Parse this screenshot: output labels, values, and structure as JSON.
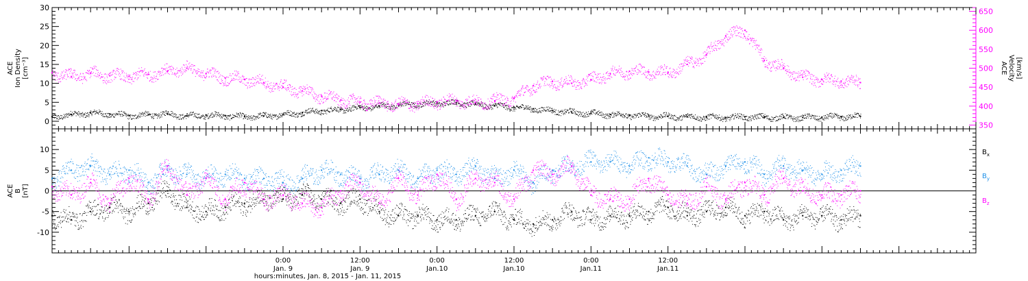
{
  "chart_data": [
    {
      "type": "scatter",
      "panel": "top",
      "ylabel_lines": [
        "ACE",
        "Ion Density",
        "[cm⁻³]"
      ],
      "ylim": [
        -2,
        30
      ],
      "yticks": [
        0,
        5,
        10,
        15,
        20,
        25,
        30
      ],
      "right_ylabel_lines": [
        "ACE",
        "Velocity",
        "[km/s]"
      ],
      "right_ylim": [
        340,
        660
      ],
      "right_yticks": [
        350,
        400,
        450,
        500,
        550,
        600,
        650
      ],
      "series": [
        {
          "axis": "left",
          "color": "#000000",
          "x_hours": [
            -36,
            -33,
            -30,
            -27,
            -24,
            -21,
            -18,
            -15,
            -12,
            -9,
            -6,
            -3,
            0,
            3,
            6,
            9,
            12,
            15,
            18,
            21,
            24,
            27,
            30,
            33,
            36,
            39,
            42,
            45,
            48,
            51,
            54,
            57,
            60,
            63,
            66,
            69,
            72,
            75,
            78,
            81,
            84,
            87,
            90
          ],
          "values": [
            1.2,
            1.8,
            2.2,
            1.9,
            1.5,
            1.7,
            2.0,
            1.4,
            1.6,
            1.5,
            1.2,
            1.4,
            1.8,
            2.3,
            2.8,
            3.1,
            3.6,
            4.0,
            4.3,
            4.6,
            4.8,
            4.9,
            4.5,
            4.1,
            3.7,
            3.3,
            2.8,
            2.4,
            2.1,
            1.8,
            1.6,
            1.4,
            1.3,
            1.2,
            1.1,
            1.0,
            1.2,
            1.1,
            1.0,
            1.0,
            1.1,
            1.2,
            1.3
          ]
        },
        {
          "axis": "right",
          "color": "#ff00ff",
          "x_hours": [
            -36,
            -33,
            -30,
            -27,
            -24,
            -21,
            -18,
            -15,
            -12,
            -9,
            -6,
            -3,
            0,
            3,
            6,
            9,
            12,
            15,
            18,
            21,
            24,
            27,
            30,
            33,
            36,
            39,
            42,
            45,
            48,
            51,
            54,
            57,
            60,
            63,
            66,
            69,
            72,
            75,
            78,
            81,
            84,
            87,
            90
          ],
          "values": [
            488,
            478,
            486,
            480,
            478,
            484,
            492,
            500,
            486,
            474,
            470,
            462,
            450,
            440,
            426,
            416,
            410,
            408,
            404,
            406,
            412,
            414,
            410,
            414,
            420,
            454,
            465,
            460,
            470,
            486,
            492,
            490,
            488,
            510,
            535,
            585,
            600,
            520,
            500,
            476,
            470,
            466,
            462
          ]
        }
      ]
    },
    {
      "type": "scatter",
      "panel": "bottom",
      "ylabel_lines": [
        "ACE",
        "B",
        "[nT]"
      ],
      "ylim": [
        -15,
        15
      ],
      "yticks": [
        -10,
        -5,
        0,
        5,
        10
      ],
      "zero_line": true,
      "series": [
        {
          "name": "B",
          "sub": "x",
          "color": "#000000",
          "x_hours": [
            -36,
            -33,
            -30,
            -27,
            -24,
            -21,
            -18,
            -15,
            -12,
            -9,
            -6,
            -3,
            0,
            3,
            6,
            9,
            12,
            15,
            18,
            21,
            24,
            27,
            30,
            33,
            36,
            39,
            42,
            45,
            48,
            51,
            54,
            57,
            60,
            63,
            66,
            69,
            72,
            75,
            78,
            81,
            84,
            87,
            90
          ],
          "values": [
            -6,
            -7,
            -5,
            -4,
            -5,
            -3,
            0,
            -4,
            -5,
            -4,
            -3,
            -2,
            -2,
            -1,
            -2,
            -3,
            -2,
            -5,
            -6,
            -6,
            -7,
            -7,
            -6,
            -5,
            -7,
            -8,
            -7,
            -5,
            -7,
            -6,
            -6,
            -5,
            -4,
            -6,
            -5,
            -4,
            -6,
            -5,
            -7,
            -6,
            -6,
            -7,
            -6
          ]
        },
        {
          "name": "B",
          "sub": "y",
          "color": "#1e90e8",
          "x_hours": [
            -36,
            -33,
            -30,
            -27,
            -24,
            -21,
            -18,
            -15,
            -12,
            -9,
            -6,
            -3,
            0,
            3,
            6,
            9,
            12,
            15,
            18,
            21,
            24,
            27,
            30,
            33,
            36,
            39,
            42,
            45,
            48,
            51,
            54,
            57,
            60,
            63,
            66,
            69,
            72,
            75,
            78,
            81,
            84,
            87,
            90
          ],
          "values": [
            3,
            5,
            6,
            4,
            5,
            2,
            5,
            4,
            3,
            4,
            3,
            3,
            2,
            3,
            5,
            4,
            3,
            4,
            5,
            3,
            5,
            4,
            6,
            3,
            5,
            2,
            5,
            6,
            7,
            7,
            6,
            8,
            7,
            6,
            4,
            6,
            7,
            4,
            6,
            5,
            4,
            5,
            6
          ]
        },
        {
          "name": "B",
          "sub": "z",
          "color": "#ff00ff",
          "x_hours": [
            -36,
            -33,
            -30,
            -27,
            -24,
            -21,
            -18,
            -15,
            -12,
            -9,
            -6,
            -3,
            0,
            3,
            6,
            9,
            12,
            15,
            18,
            21,
            24,
            27,
            30,
            33,
            36,
            39,
            42,
            45,
            48,
            51,
            54,
            57,
            60,
            63,
            66,
            69,
            72,
            75,
            78,
            81,
            84,
            87,
            90
          ],
          "values": [
            1,
            -1,
            2,
            -3,
            3,
            -2,
            6,
            -1,
            3,
            -2,
            2,
            -2,
            -1,
            -3,
            -4,
            0,
            2,
            -3,
            3,
            -1,
            4,
            -2,
            3,
            2,
            -2,
            5,
            4,
            6,
            -1,
            -2,
            -2,
            3,
            -1,
            -3,
            1,
            -2,
            2,
            -1,
            3,
            0,
            -1,
            -1,
            0
          ]
        }
      ]
    }
  ],
  "x_axis": {
    "range_hours": [
      -36,
      108
    ],
    "ticks": [
      {
        "hour": 0,
        "line1": "0:00",
        "line2": "Jan. 9"
      },
      {
        "hour": 12,
        "line1": "12:00",
        "line2": "Jan. 9"
      },
      {
        "hour": 24,
        "line1": "0:00",
        "line2": "Jan.10"
      },
      {
        "hour": 36,
        "line1": "12:00",
        "line2": "Jan.10"
      },
      {
        "hour": 48,
        "line1": "0:00",
        "line2": "Jan.11"
      },
      {
        "hour": 60,
        "line1": "12:00",
        "line2": "Jan.11"
      }
    ],
    "label": "hours:minutes, Jan.  8, 2015 - Jan. 11, 2015"
  },
  "colors": {
    "black": "#000000",
    "magenta": "#ff00ff",
    "blue": "#1e90e8"
  }
}
